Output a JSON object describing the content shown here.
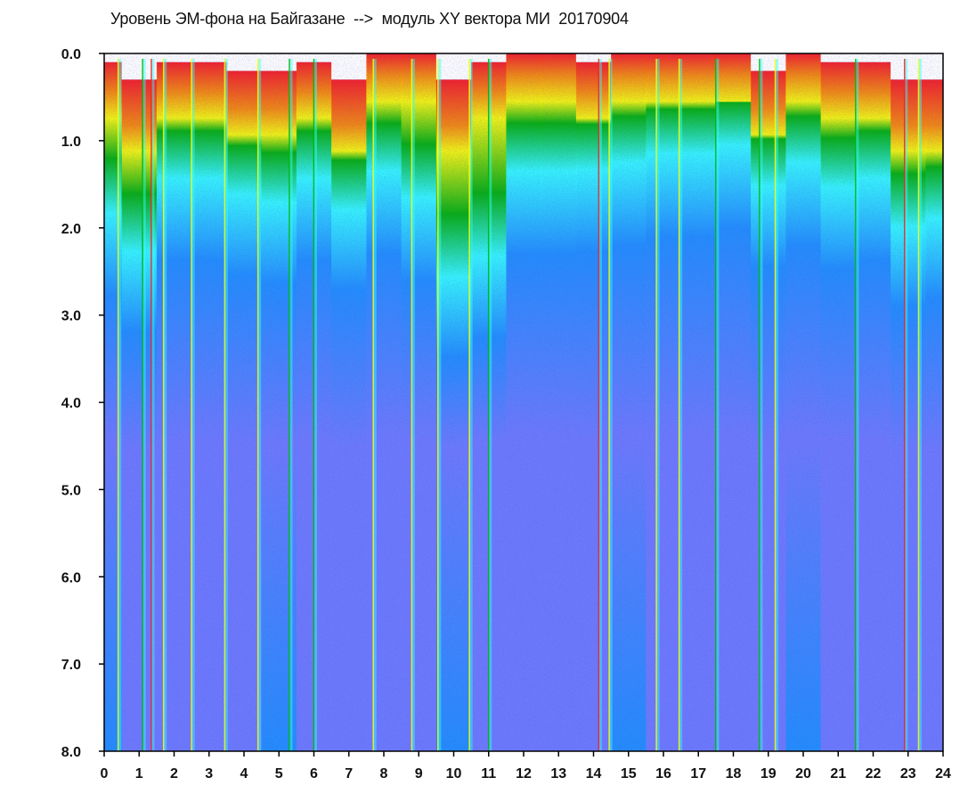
{
  "chart_data": {
    "type": "heatmap",
    "title": "Уровень ЭМ-фона на Байгазане  -->  модуль XY вектора МИ  20170904",
    "xlabel": "",
    "ylabel": "",
    "xlim": [
      0,
      24
    ],
    "ylim": [
      8.0,
      0.0
    ],
    "y_inverted": true,
    "x_ticks": [
      "0",
      "1",
      "2",
      "3",
      "4",
      "5",
      "6",
      "7",
      "8",
      "9",
      "10",
      "11",
      "12",
      "13",
      "14",
      "15",
      "16",
      "17",
      "18",
      "19",
      "20",
      "21",
      "22",
      "23",
      "24"
    ],
    "y_ticks": [
      "0.0",
      "1.0",
      "2.0",
      "3.0",
      "4.0",
      "5.0",
      "6.0",
      "7.0",
      "8.0"
    ],
    "color_scale": [
      "#ff1a1a",
      "#ff8c00",
      "#ffff00",
      "#00b400",
      "#33ffff",
      "#1e90ff",
      "#6f7bff",
      "#0000cc"
    ],
    "intensity_profile_by_hour": [
      {
        "hour": 0,
        "upper_edge": 0.1,
        "green_band_end": 1.4
      },
      {
        "hour": 1,
        "upper_edge": 0.3,
        "green_band_end": 1.7
      },
      {
        "hour": 2,
        "upper_edge": 0.1,
        "green_band_end": 1.0
      },
      {
        "hour": 3,
        "upper_edge": 0.1,
        "green_band_end": 1.0
      },
      {
        "hour": 4,
        "upper_edge": 0.2,
        "green_band_end": 1.1
      },
      {
        "hour": 5,
        "upper_edge": 0.2,
        "green_band_end": 1.2
      },
      {
        "hour": 6,
        "upper_edge": 0.1,
        "green_band_end": 1.0
      },
      {
        "hour": 7,
        "upper_edge": 0.3,
        "green_band_end": 1.2
      },
      {
        "hour": 8,
        "upper_edge": 0.0,
        "green_band_end": 1.0
      },
      {
        "hour": 9,
        "upper_edge": 0.0,
        "green_band_end": 1.3
      },
      {
        "hour": 10,
        "upper_edge": 0.3,
        "green_band_end": 2.0
      },
      {
        "hour": 11,
        "upper_edge": 0.1,
        "green_band_end": 1.9
      },
      {
        "hour": 12,
        "upper_edge": 0.0,
        "green_band_end": 1.0
      },
      {
        "hour": 13,
        "upper_edge": 0.0,
        "green_band_end": 1.0
      },
      {
        "hour": 14,
        "upper_edge": 0.1,
        "green_band_end": 0.9
      },
      {
        "hour": 15,
        "upper_edge": 0.0,
        "green_band_end": 0.9
      },
      {
        "hour": 16,
        "upper_edge": 0.0,
        "green_band_end": 0.8
      },
      {
        "hour": 17,
        "upper_edge": 0.0,
        "green_band_end": 0.8
      },
      {
        "hour": 18,
        "upper_edge": 0.0,
        "green_band_end": 0.7
      },
      {
        "hour": 19,
        "upper_edge": 0.2,
        "green_band_end": 1.0
      },
      {
        "hour": 20,
        "upper_edge": 0.0,
        "green_band_end": 0.9
      },
      {
        "hour": 21,
        "upper_edge": 0.1,
        "green_band_end": 1.1
      },
      {
        "hour": 22,
        "upper_edge": 0.1,
        "green_band_end": 1.0
      },
      {
        "hour": 23,
        "upper_edge": 0.3,
        "green_band_end": 1.4
      },
      {
        "hour": 24,
        "upper_edge": 0.3,
        "green_band_end": 1.3
      }
    ],
    "vertical_streaks": [
      {
        "x": 0.4,
        "color": "#ffff00"
      },
      {
        "x": 1.1,
        "color": "#00b400"
      },
      {
        "x": 1.35,
        "color": "#ff1a1a"
      },
      {
        "x": 1.7,
        "color": "#ffff00"
      },
      {
        "x": 2.5,
        "color": "#ffff00"
      },
      {
        "x": 3.45,
        "color": "#ffff00"
      },
      {
        "x": 4.4,
        "color": "#ffff00"
      },
      {
        "x": 5.3,
        "color": "#00b400"
      },
      {
        "x": 6.0,
        "color": "#00b400"
      },
      {
        "x": 7.7,
        "color": "#ffff00"
      },
      {
        "x": 8.8,
        "color": "#ffff00"
      },
      {
        "x": 9.55,
        "color": "#ffff00"
      },
      {
        "x": 10.45,
        "color": "#ffff00"
      },
      {
        "x": 11.0,
        "color": "#00b400"
      },
      {
        "x": 14.15,
        "color": "#ff1a1a"
      },
      {
        "x": 14.45,
        "color": "#ffff00"
      },
      {
        "x": 15.8,
        "color": "#ffff00"
      },
      {
        "x": 16.45,
        "color": "#ffff00"
      },
      {
        "x": 17.5,
        "color": "#00b400"
      },
      {
        "x": 18.75,
        "color": "#00b400"
      },
      {
        "x": 19.2,
        "color": "#ffff00"
      },
      {
        "x": 21.5,
        "color": "#00b400"
      },
      {
        "x": 22.9,
        "color": "#ff1a1a"
      },
      {
        "x": 23.3,
        "color": "#ffff00"
      }
    ],
    "grid": false,
    "legend": "none"
  }
}
